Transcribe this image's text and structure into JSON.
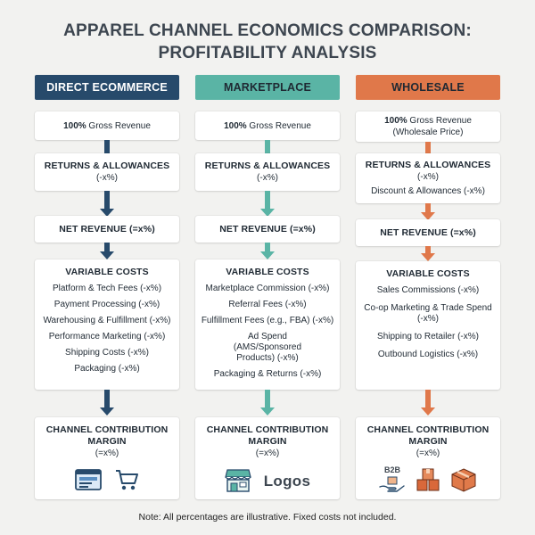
{
  "title_line1": "APPAREL CHANNEL ECONOMICS COMPARISON:",
  "title_line2": "PROFITABILITY ANALYSIS",
  "colors": {
    "direct": "#274a6b",
    "marketplace": "#5ab4a5",
    "wholesale": "#e0784a"
  },
  "columns": [
    {
      "header": "DIRECT ECOMMERCE",
      "gross_pct": "100%",
      "gross_label": " Gross Revenue",
      "gross_sub": "",
      "returns": "RETURNS & ALLOWANCES",
      "returns_value": "(-x%)",
      "returns_extra": "",
      "net": "NET REVENUE (=x%)",
      "var_heading": "VARIABLE COSTS",
      "costs": [
        "Platform & Tech Fees (-x%)",
        "Payment Processing (-x%)",
        "Warehousing & Fulfillment (-x%)",
        "Performance Marketing (-x%)",
        "Shipping Costs (-x%)",
        "Packaging (-x%)"
      ],
      "margin_line1": "CHANNEL CONTRIBUTION",
      "margin_line2": "MARGIN",
      "margin_value": "(=x%)",
      "icons": [
        "browser-window-icon",
        "shopping-cart-icon"
      ]
    },
    {
      "header": "MARKETPLACE",
      "gross_pct": "100%",
      "gross_label": " Gross Revenue",
      "gross_sub": "",
      "returns": "RETURNS & ALLOWANCES",
      "returns_value": "(-x%)",
      "returns_extra": "",
      "net": "NET REVENUE (=x%)",
      "var_heading": "VARIABLE COSTS",
      "costs": [
        "Marketplace Commission (-x%)",
        "Referral Fees (-x%)",
        "Fulfillment Fees (e.g., FBA) (-x%)",
        "Ad Spend (AMS/Sponsored Products) (-x%)",
        "Packaging & Returns (-x%)"
      ],
      "margin_line1": "CHANNEL CONTRIBUTION",
      "margin_line2": "MARGIN",
      "margin_value": "(=x%)",
      "logos_text": "Logos",
      "icons": [
        "storefront-icon"
      ]
    },
    {
      "header": "WHOLESALE",
      "gross_pct": "100%",
      "gross_label": " Gross Revenue",
      "gross_sub": "(Wholesale Price)",
      "returns": "RETURNS & ALLOWANCES",
      "returns_value": "(-x%)",
      "returns_extra": "Discount & Allowances (-x%)",
      "net": "NET REVENUE (=x%)",
      "var_heading": "VARIABLE COSTS",
      "costs": [
        "Sales Commissions (-x%)",
        "Co-op Marketing & Trade Spend (-x%)",
        "Shipping to Retailer (-x%)",
        "Outbound Logistics (-x%)"
      ],
      "margin_line1": "CHANNEL CONTRIBUTION",
      "margin_line2": "MARGIN",
      "margin_value": "(=x%)",
      "b2b_text": "B2B",
      "icons": [
        "hand-box-icon",
        "box-stack-icon",
        "package-icon"
      ]
    }
  ],
  "note": "Note: All percentages are illustrative. Fixed costs not included."
}
